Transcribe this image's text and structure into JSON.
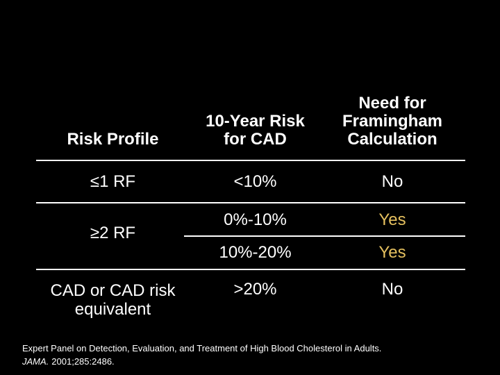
{
  "colors": {
    "background": "#000000",
    "text": "#ffffff",
    "highlight": "#e5c05f",
    "rule": "#ffffff"
  },
  "table": {
    "headers": {
      "risk_profile": "Risk Profile",
      "ten_year_risk": "10-Year Risk\nfor CAD",
      "need_framingham": "Need for\nFramingham\nCalculation"
    },
    "rows": [
      {
        "profile": "≤1 RF",
        "risk": "<10%",
        "need": "No",
        "need_highlight": false
      },
      {
        "profile": "≥2 RF",
        "risk": "0%-10%",
        "need": "Yes",
        "need_highlight": true
      },
      {
        "profile": "",
        "risk": "10%-20%",
        "need": "Yes",
        "need_highlight": true
      },
      {
        "profile": "CAD or CAD risk\nequivalent",
        "risk": ">20%",
        "need": "No",
        "need_highlight": false
      }
    ]
  },
  "footnote": {
    "line1": "Expert Panel on Detection, Evaluation, and Treatment of High Blood Cholesterol in Adults.",
    "journal": "JAMA.",
    "citation": "2001;285:2486."
  }
}
